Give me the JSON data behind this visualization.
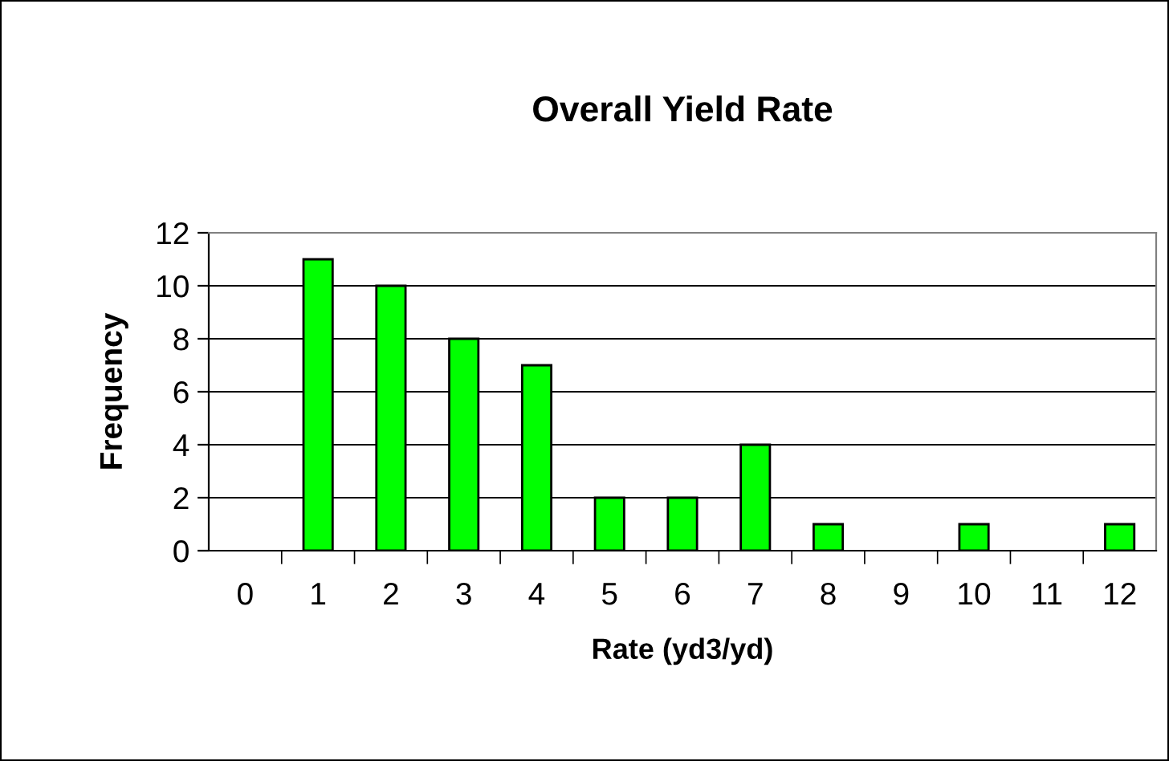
{
  "chart_data": {
    "type": "bar",
    "title": "Overall Yield Rate",
    "xlabel": "Rate (yd3/yd)",
    "ylabel": "Frequency",
    "categories": [
      "0",
      "1",
      "2",
      "3",
      "4",
      "5",
      "6",
      "7",
      "8",
      "9",
      "10",
      "11",
      "12"
    ],
    "values": [
      0,
      11,
      10,
      8,
      7,
      2,
      2,
      4,
      1,
      0,
      1,
      0,
      1
    ],
    "color": "#00ff00",
    "ylim": [
      0,
      12
    ],
    "yticks": [
      0,
      2,
      4,
      6,
      8,
      10,
      12
    ],
    "grid": "y",
    "legend": false
  }
}
